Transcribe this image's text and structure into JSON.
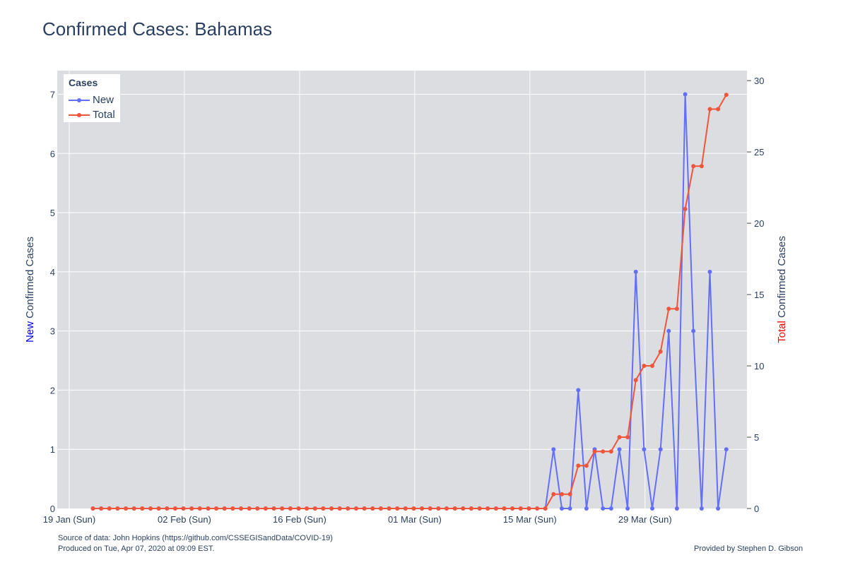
{
  "title": "Confirmed Cases: Bahamas",
  "footer": {
    "source": "Source of data: John Hopkins (https://github.com/CSSEGISandData/COVID-19)",
    "produced": "Produced on Tue, Apr 07, 2020 at 09:09 EST.",
    "credit": "Provided by Stephen D. Gibson"
  },
  "colors": {
    "new": "#636efa",
    "total": "#ef553b",
    "plot_bg": "#dcdde0",
    "grid": "#ffffff"
  },
  "chart_data": {
    "type": "line",
    "legend": {
      "title": "Cases",
      "placement": "top-left"
    },
    "x_ticks": [
      "19 Jan (Sun)",
      "02 Feb (Sun)",
      "16 Feb (Sun)",
      "01 Mar (Sun)",
      "15 Mar (Sun)",
      "29 Mar (Sun)"
    ],
    "x_start": "2020-01-22",
    "x_end": "2020-04-06",
    "y_left": {
      "label_prefix": "New",
      "label_rest": " Confirmed Cases",
      "range": [
        0,
        7.4
      ],
      "ticks": [
        0,
        1,
        2,
        3,
        4,
        5,
        6,
        7
      ]
    },
    "y_right": {
      "label_prefix": "Total",
      "label_rest": " Confirmed Cases",
      "range": [
        0,
        30.7
      ],
      "ticks": [
        0,
        5,
        10,
        15,
        20,
        25,
        30
      ]
    },
    "series": [
      {
        "name": "New",
        "axis": "left",
        "values": [
          0,
          0,
          0,
          0,
          0,
          0,
          0,
          0,
          0,
          0,
          0,
          0,
          0,
          0,
          0,
          0,
          0,
          0,
          0,
          0,
          0,
          0,
          0,
          0,
          0,
          0,
          0,
          0,
          0,
          0,
          0,
          0,
          0,
          0,
          0,
          0,
          0,
          0,
          0,
          0,
          0,
          0,
          0,
          0,
          0,
          0,
          0,
          0,
          0,
          0,
          0,
          0,
          0,
          0,
          0,
          0,
          1,
          0,
          0,
          2,
          0,
          1,
          0,
          0,
          1,
          0,
          4,
          1,
          0,
          1,
          3,
          0,
          7,
          3,
          0,
          4,
          0,
          1
        ]
      },
      {
        "name": "Total",
        "axis": "right",
        "values": [
          0,
          0,
          0,
          0,
          0,
          0,
          0,
          0,
          0,
          0,
          0,
          0,
          0,
          0,
          0,
          0,
          0,
          0,
          0,
          0,
          0,
          0,
          0,
          0,
          0,
          0,
          0,
          0,
          0,
          0,
          0,
          0,
          0,
          0,
          0,
          0,
          0,
          0,
          0,
          0,
          0,
          0,
          0,
          0,
          0,
          0,
          0,
          0,
          0,
          0,
          0,
          0,
          0,
          0,
          0,
          0,
          1,
          1,
          1,
          3,
          3,
          4,
          4,
          4,
          5,
          5,
          9,
          10,
          10,
          11,
          14,
          14,
          21,
          24,
          24,
          28,
          28,
          29
        ]
      }
    ]
  }
}
